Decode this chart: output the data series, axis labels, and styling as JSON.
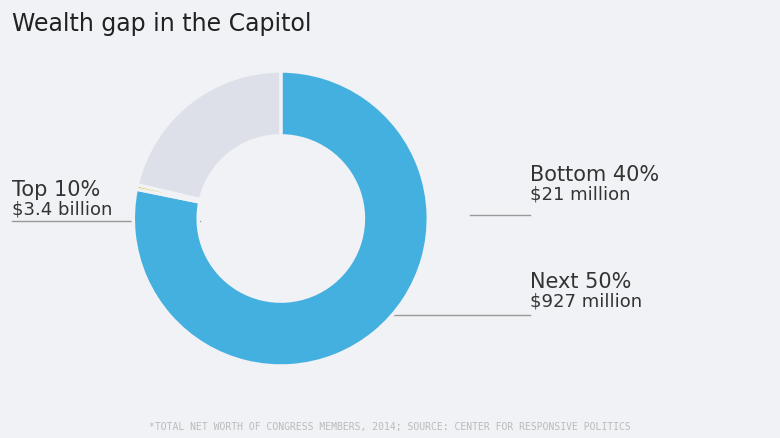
{
  "title": "Wealth gap in the Capitol",
  "footnote": "*TOTAL NET WORTH OF CONGRESS MEMBERS, 2014; SOURCE: CENTER FOR RESPONSIVE POLITICS",
  "slices": [
    {
      "label": "Top 10%",
      "sublabel": "$3.4 billion",
      "value": 3400,
      "color": "#44b0e0",
      "side": "left"
    },
    {
      "label": "Bottom 40%",
      "sublabel": "$21 million",
      "value": 21,
      "color": "#e8c84a",
      "side": "right"
    },
    {
      "label": "Next 50%",
      "sublabel": "$927 million",
      "value": 927,
      "color": "#dde0e8",
      "side": "right"
    }
  ],
  "bg_color": "#f0f2f5",
  "title_fontsize": 17,
  "label_fontsize": 15,
  "sublabel_fontsize": 13,
  "footnote_fontsize": 7,
  "start_angle": 90,
  "line_color": "#999999",
  "text_color": "#333333"
}
